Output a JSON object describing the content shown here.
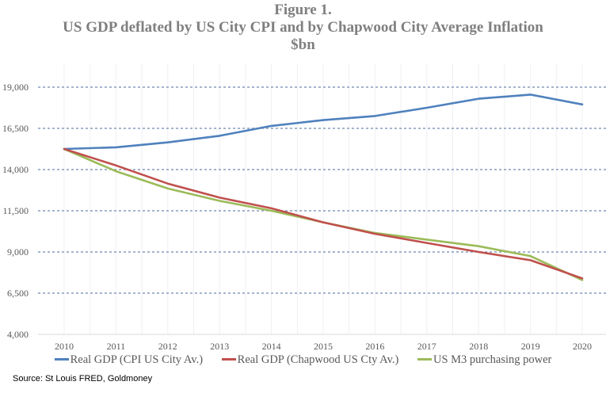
{
  "chart_data": {
    "type": "line",
    "title": "Figure 1.",
    "subtitle": "US GDP deflated by US City CPI and by Chapwood City Average Inflation",
    "unit_label": "$bn",
    "xlabel": "",
    "ylabel": "",
    "x": [
      "2010",
      "2011",
      "2012",
      "2013",
      "2014",
      "2015",
      "2016",
      "2017",
      "2018",
      "2019",
      "2020"
    ],
    "ylim": [
      4000,
      19000
    ],
    "yticks": [
      4000,
      6500,
      9000,
      11500,
      14000,
      16500,
      19000
    ],
    "ytick_labels": [
      "4,000",
      "6,500",
      "9,000",
      "11,500",
      "14,000",
      "16,500",
      "19,000"
    ],
    "grid": "horizontal dashed",
    "legend_position": "bottom",
    "series": [
      {
        "name": "Real GDP (CPI US City Av.)",
        "color": "#4f81bd",
        "values": [
          15250,
          15350,
          15650,
          16050,
          16650,
          17000,
          17250,
          17750,
          18300,
          18550,
          17950
        ]
      },
      {
        "name": "Real GDP (Chapwood US Cty Av.)",
        "color": "#c0504d",
        "values": [
          15250,
          14250,
          13150,
          12300,
          11650,
          10800,
          10100,
          9550,
          9000,
          8500,
          7400
        ]
      },
      {
        "name": "US M3 purchasing power",
        "color": "#9bbb59",
        "values": [
          15250,
          13900,
          12850,
          12100,
          11500,
          10800,
          10150,
          9750,
          9350,
          8750,
          7300
        ]
      }
    ]
  },
  "source": "Source: St Louis FRED, Goldmoney"
}
